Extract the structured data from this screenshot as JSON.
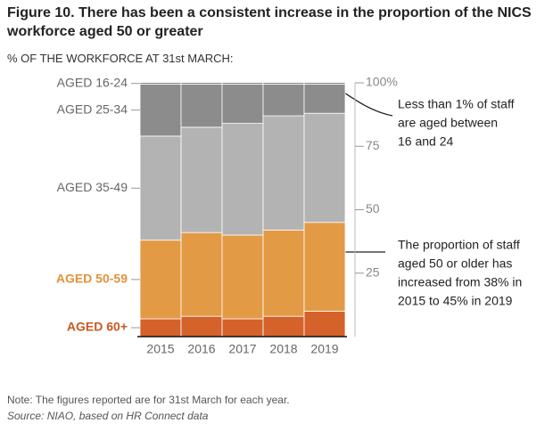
{
  "chart_data": {
    "type": "stacked-bar",
    "title": "Figure 10. There has been a consistent increase in the proportion of the NICS workforce aged 50 or greater",
    "subtitle": "% OF THE WORKFORCE AT 31st MARCH:",
    "categories": [
      "2015",
      "2016",
      "2017",
      "2018",
      "2019"
    ],
    "series": [
      {
        "name": "AGED 60+",
        "color": "#d4622a",
        "label_color": "#c8581f",
        "values": [
          7,
          8,
          7,
          8,
          10
        ]
      },
      {
        "name": "AGED 50-59",
        "color": "#e39a45",
        "label_color": "#e3913a",
        "values": [
          31,
          33,
          33,
          34,
          35
        ]
      },
      {
        "name": "AGED 35-49",
        "color": "#b3b3b3",
        "label_color": "#666666",
        "values": [
          41,
          41.5,
          44,
          45,
          43
        ]
      },
      {
        "name": "AGED 25-34",
        "color": "#8c8c8c",
        "label_color": "#666666",
        "values": [
          20.5,
          17,
          15.5,
          12.5,
          11.5
        ]
      },
      {
        "name": "AGED 16-24",
        "color": "#333333",
        "label_color": "#666666",
        "values": [
          0.5,
          0.5,
          0.5,
          0.5,
          0.5
        ]
      }
    ],
    "ylim": [
      0,
      100
    ],
    "yticks": [
      {
        "value": 25,
        "label": "25"
      },
      {
        "value": 50,
        "label": "50"
      },
      {
        "value": 75,
        "label": "75"
      },
      {
        "value": 100,
        "label": "100%"
      }
    ],
    "annotations": [
      {
        "lines": [
          "Less than 1% of staff",
          "are aged between",
          "16 and 24"
        ]
      },
      {
        "lines": [
          "The proportion of staff",
          "aged 50 or older has",
          "increased from 38% in",
          "2015 to 45% in 2019"
        ]
      }
    ],
    "note": "Note: The figures reported are for 31st March for each year.",
    "source": "Source: NIAO, based on HR Connect data"
  }
}
